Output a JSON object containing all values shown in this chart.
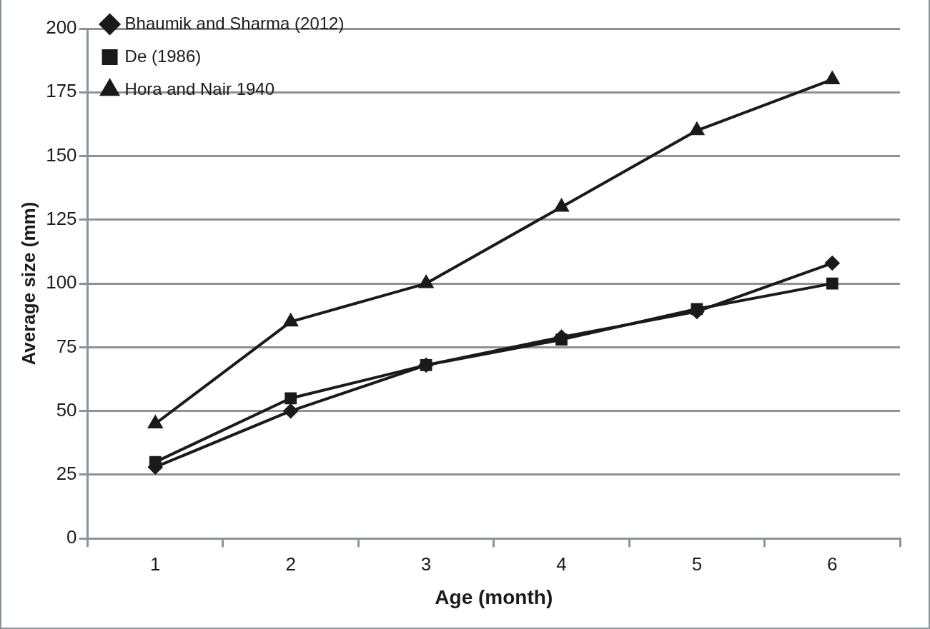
{
  "chart_data": {
    "type": "line",
    "xlabel": "Age (month)",
    "ylabel": "Average size (mm)",
    "categories": [
      "1",
      "2",
      "3",
      "4",
      "5",
      "6"
    ],
    "series": [
      {
        "name": "Bhaumik and Sharma (2012)",
        "color": "#1a1a1a",
        "marker": "diamond",
        "values": [
          28,
          50,
          68,
          79,
          89,
          108
        ]
      },
      {
        "name": "De (1986)",
        "color": "#1a1a1a",
        "marker": "square",
        "values": [
          30,
          55,
          68,
          78,
          90,
          100
        ]
      },
      {
        "name": "Hora and Nair 1940",
        "color": "#1a1a1a",
        "marker": "triangle",
        "values": [
          45,
          85,
          100,
          130,
          160,
          180
        ]
      }
    ],
    "ylim": [
      0,
      200
    ],
    "yticks": [
      0,
      25,
      50,
      75,
      100,
      125,
      150,
      175,
      200
    ],
    "grid": "y",
    "legend": "top left",
    "line_style": "solid"
  }
}
